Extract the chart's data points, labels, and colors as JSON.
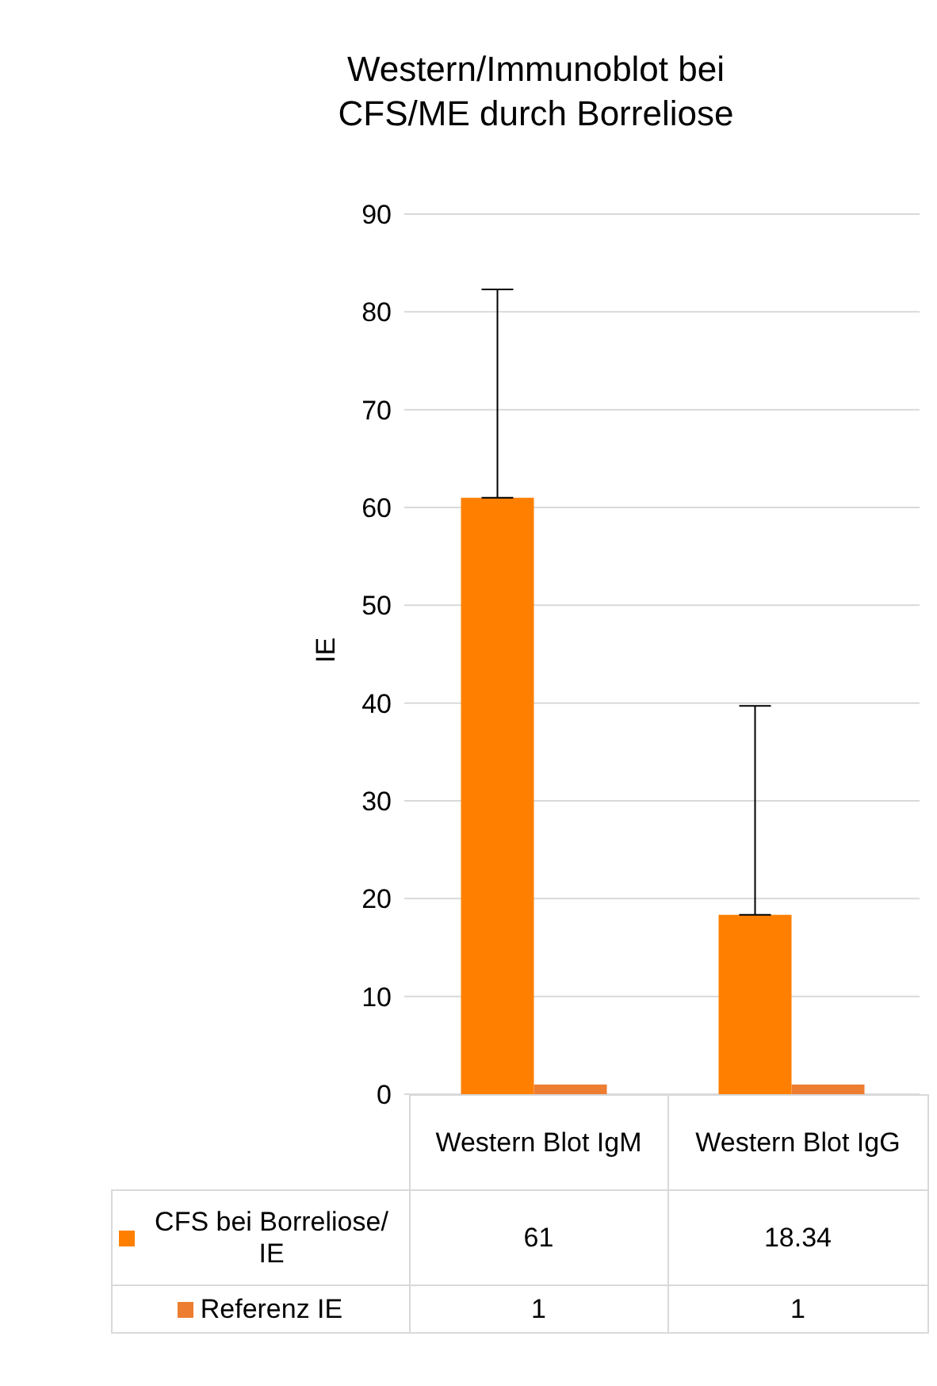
{
  "chart_data": {
    "type": "bar",
    "title": "Western/Immunoblot bei CFS/ME durch Borreliose",
    "ylabel": "IE",
    "categories": [
      "Western Blot IgM",
      "Western Blot IgG"
    ],
    "series": [
      {
        "name": "CFS bei Borreliose/ IE",
        "color": "#ff8000",
        "values": [
          61,
          18.34
        ],
        "errors": [
          [
            61,
            82.3
          ],
          [
            18.34,
            39.7
          ]
        ]
      },
      {
        "name": "Referenz IE",
        "color": "#ed7d31",
        "values": [
          1,
          1
        ]
      }
    ],
    "ylim": [
      0,
      90
    ],
    "yticks": [
      0,
      10,
      20,
      30,
      40,
      50,
      60,
      70,
      80,
      90
    ],
    "grid": "y",
    "legend": "bottom",
    "data_labels": true
  }
}
